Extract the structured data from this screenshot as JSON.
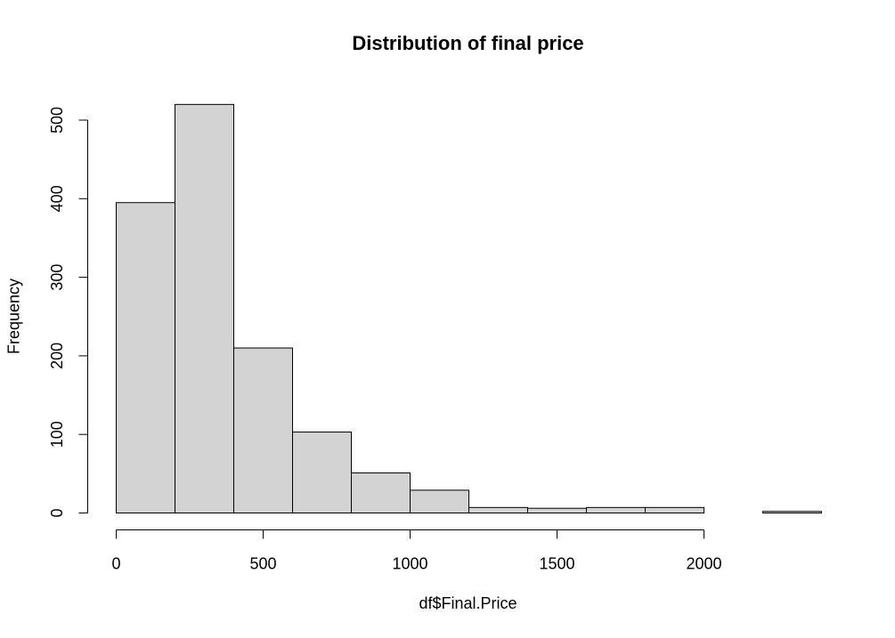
{
  "chart_data": {
    "type": "bar",
    "title": "Distribution of final price",
    "xlabel": "df$Final.Price",
    "ylabel": "Frequency",
    "bin_edges": [
      0,
      200,
      400,
      600,
      800,
      1000,
      1200,
      1400,
      1600,
      1800,
      2000,
      2200,
      2400
    ],
    "values": [
      395,
      520,
      210,
      103,
      51,
      29,
      7,
      6,
      7,
      7,
      0,
      2
    ],
    "xticks": [
      "0",
      "500",
      "1000",
      "1500",
      "2000"
    ],
    "xtick_values": [
      0,
      500,
      1000,
      1500,
      2000
    ],
    "yticks": [
      "0",
      "100",
      "200",
      "300",
      "400",
      "500"
    ],
    "ytick_values": [
      0,
      100,
      200,
      300,
      400,
      500
    ],
    "xlim": [
      0,
      2400
    ],
    "ylim": [
      0,
      520
    ],
    "bar_color": "#d3d3d3",
    "bar_edge_color": "#000000",
    "grid": false
  }
}
